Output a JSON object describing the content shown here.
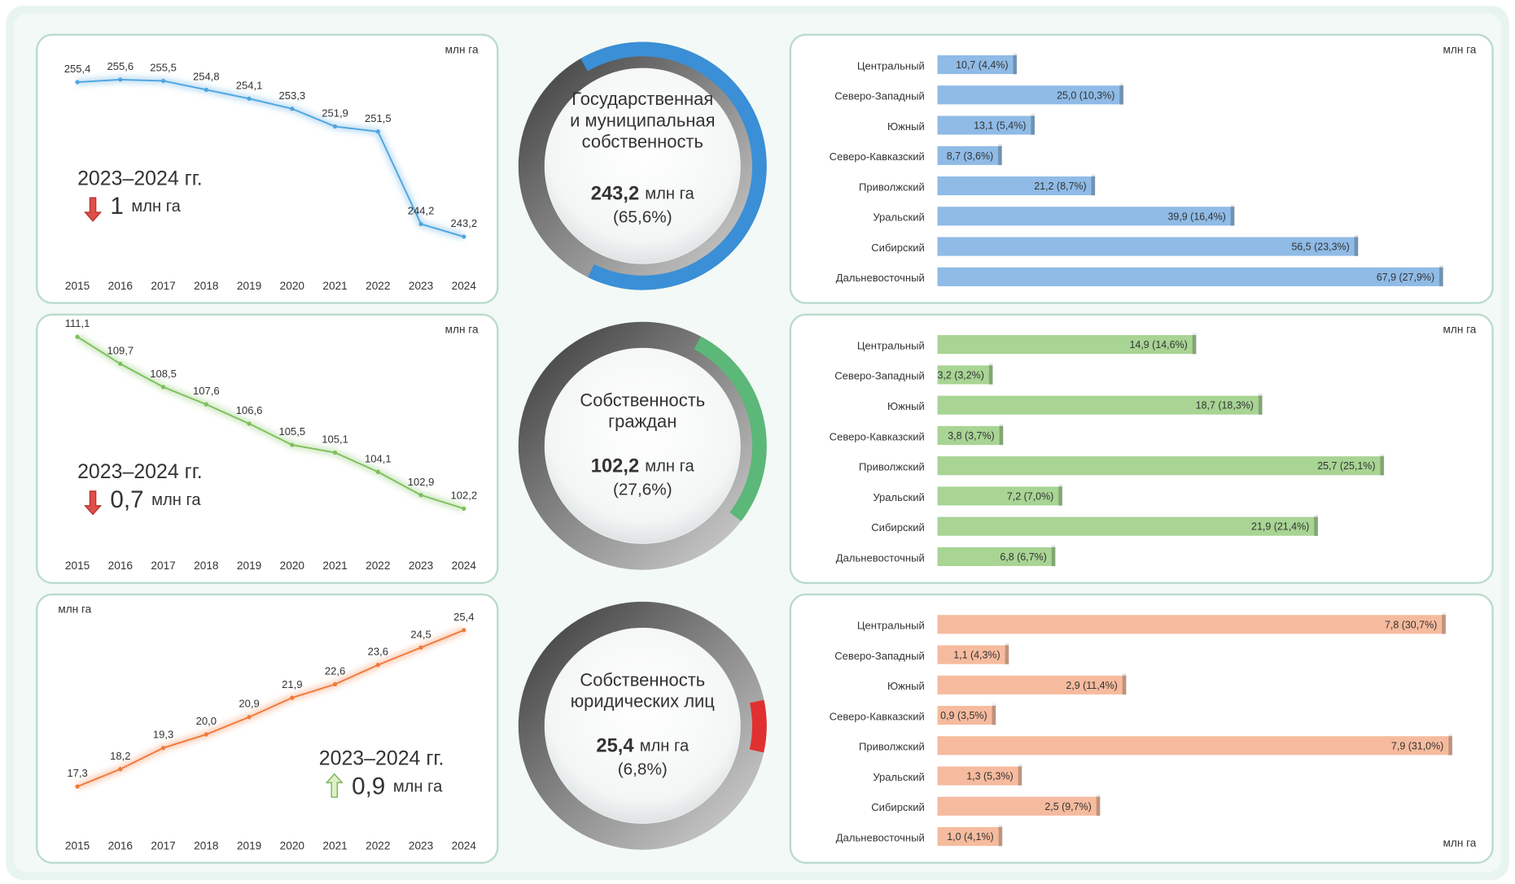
{
  "chart_data": [
    {
      "type": "line",
      "unit": "млн га",
      "unit_corner": "top-right",
      "categories": [
        "2015",
        "2016",
        "2017",
        "2018",
        "2019",
        "2020",
        "2021",
        "2022",
        "2023",
        "2024"
      ],
      "values": [
        255.4,
        255.6,
        255.5,
        254.8,
        254.1,
        253.3,
        251.9,
        251.5,
        244.2,
        243.2
      ],
      "value_labels": [
        "255,4",
        "255,6",
        "255,5",
        "254,8",
        "254,1",
        "253,3",
        "251,9",
        "251,5",
        "244,2",
        "243,2"
      ],
      "ylim": [
        242,
        258
      ],
      "color": "#4ea5e0",
      "period": "2023–2024 гг.",
      "change": 1,
      "change_direction": "down",
      "annotation_corner": "left"
    },
    {
      "type": "donut",
      "title": [
        "Государственная",
        "и муниципальная",
        "собственность"
      ],
      "value": 243.2,
      "value_label": "243,2",
      "unit": "млн га",
      "share": 65.6,
      "share_label": "(65,6%)",
      "color": "#3a8fd6"
    },
    {
      "type": "bar",
      "unit": "млн га",
      "unit_corner": "top-right",
      "categories": [
        "Центральный",
        "Северо-Западный",
        "Южный",
        "Северо-Кавказский",
        "Приволжский",
        "Уральский",
        "Сибирский",
        "Дальневосточный"
      ],
      "values": [
        10.7,
        25.0,
        13.1,
        8.7,
        21.2,
        39.9,
        56.5,
        67.9
      ],
      "value_labels": [
        "10,7 (4,4%)",
        "25,0 (10,3%)",
        "13,1 (5,4%)",
        "8,7 (3,6%)",
        "21,2 (8,7%)",
        "39,9 (16,4%)",
        "56,5 (23,3%)",
        "67,9 (27,9%)"
      ],
      "xlim": [
        0,
        70
      ],
      "color": "#8fbbe6"
    },
    {
      "type": "line",
      "unit": "млн га",
      "unit_corner": "top-right",
      "categories": [
        "2015",
        "2016",
        "2017",
        "2018",
        "2019",
        "2020",
        "2021",
        "2022",
        "2023",
        "2024"
      ],
      "values": [
        111.1,
        109.7,
        108.5,
        107.6,
        106.6,
        105.5,
        105.1,
        104.1,
        102.9,
        102.2
      ],
      "value_labels": [
        "111,1",
        "109,7",
        "108,5",
        "107,6",
        "106,6",
        "105,5",
        "105,1",
        "104,1",
        "102,9",
        "102,2"
      ],
      "ylim": [
        101,
        111.5
      ],
      "color": "#7cc05a",
      "period": "2023–2024 гг.",
      "change": 0.7,
      "change_label": "0,7",
      "change_direction": "down",
      "annotation_corner": "left"
    },
    {
      "type": "donut",
      "title": [
        "Собственность",
        "граждан"
      ],
      "value": 102.2,
      "value_label": "102,2",
      "unit": "млн га",
      "share": 27.6,
      "share_label": "(27,6%)",
      "color": "#5bb878"
    },
    {
      "type": "bar",
      "unit": "млн га",
      "unit_corner": "top-right",
      "categories": [
        "Центральный",
        "Северо-Западный",
        "Южный",
        "Северо-Кавказский",
        "Приволжский",
        "Уральский",
        "Сибирский",
        "Дальневосточный"
      ],
      "values": [
        14.9,
        3.2,
        18.7,
        3.8,
        25.7,
        7.2,
        21.9,
        6.8
      ],
      "value_labels": [
        "14,9 (14,6%)",
        "3,2 (3,2%)",
        "18,7 (18,3%)",
        "3,8 (3,7%)",
        "25,7 (25,1%)",
        "7,2 (7,0%)",
        "21,9 (21,4%)",
        "6,8 (6,7%)"
      ],
      "xlim": [
        0,
        30
      ],
      "color": "#a8d494"
    },
    {
      "type": "line",
      "unit": "млн га",
      "unit_corner": "top-left",
      "categories": [
        "2015",
        "2016",
        "2017",
        "2018",
        "2019",
        "2020",
        "2021",
        "2022",
        "2023",
        "2024"
      ],
      "values": [
        17.3,
        18.2,
        19.3,
        20.0,
        20.9,
        21.9,
        22.6,
        23.6,
        24.5,
        25.4
      ],
      "value_labels": [
        "17,3",
        "18,2",
        "19,3",
        "20,0",
        "20,9",
        "21,9",
        "22,6",
        "23,6",
        "24,5",
        "25,4"
      ],
      "ylim": [
        16,
        26.5
      ],
      "color": "#f0793a",
      "period": "2023–2024 гг.",
      "change": 0.9,
      "change_label": "0,9",
      "change_direction": "up",
      "annotation_corner": "bottom-right"
    },
    {
      "type": "donut",
      "title": [
        "Собственность",
        "юридических лиц"
      ],
      "value": 25.4,
      "value_label": "25,4",
      "unit": "млн га",
      "share": 6.8,
      "share_label": "(6,8%)",
      "color": "#e03030"
    },
    {
      "type": "bar",
      "unit": "млн га",
      "unit_corner": "bottom-right",
      "categories": [
        "Центральный",
        "Северо-Западный",
        "Южный",
        "Северо-Кавказский",
        "Приволжский",
        "Уральский",
        "Сибирский",
        "Дальневосточный"
      ],
      "values": [
        7.8,
        1.1,
        2.9,
        0.9,
        7.9,
        1.3,
        2.5,
        1.0
      ],
      "value_labels": [
        "7,8 (30,7%)",
        "1,1 (4,3%)",
        "2,9 (11,4%)",
        "0,9 (3,5%)",
        "7,9 (31,0%)",
        "1,3 (5,3%)",
        "2,5 (9,7%)",
        "1,0 (4,1%)"
      ],
      "xlim": [
        0,
        8
      ],
      "color": "#f6bb9e"
    }
  ]
}
